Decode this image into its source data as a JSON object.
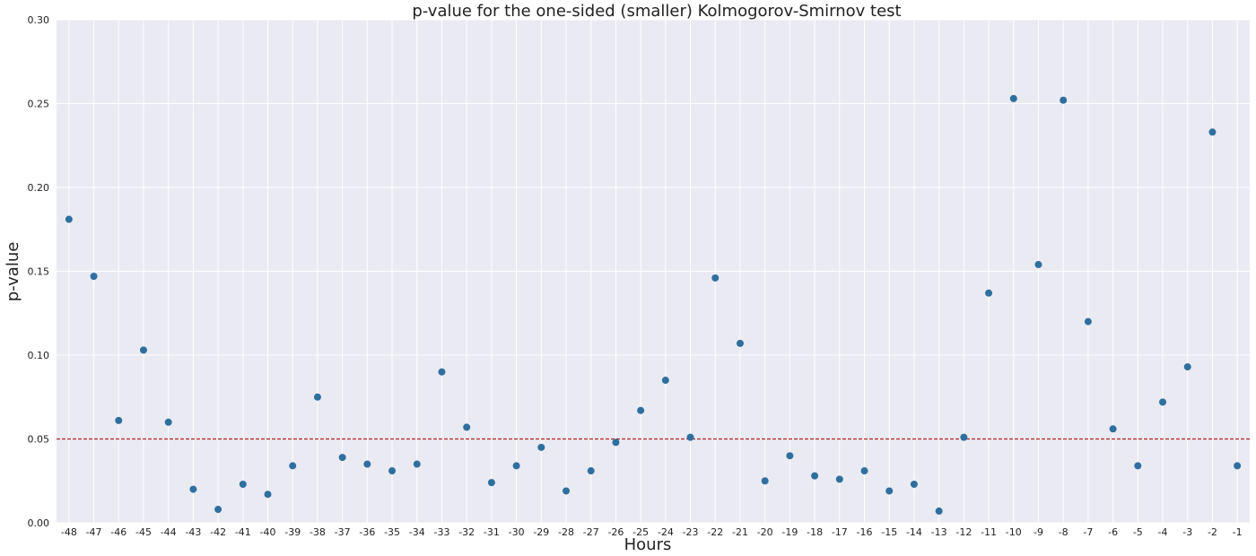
{
  "chart_data": {
    "type": "scatter",
    "title": "p-value for the one-sided (smaller) Kolmogorov-Smirnov test",
    "xlabel": "Hours",
    "ylabel": "p-value",
    "x": [
      -48,
      -47,
      -46,
      -45,
      -44,
      -43,
      -42,
      -41,
      -40,
      -39,
      -38,
      -37,
      -36,
      -35,
      -34,
      -33,
      -32,
      -31,
      -30,
      -29,
      -28,
      -27,
      -26,
      -25,
      -24,
      -23,
      -22,
      -21,
      -20,
      -19,
      -18,
      -17,
      -16,
      -15,
      -14,
      -13,
      -12,
      -11,
      -10,
      -9,
      -8,
      -7,
      -6,
      -5,
      -4,
      -3,
      -2,
      -1
    ],
    "x_tick_labels": [
      "-48",
      "-47",
      "-46",
      "-45",
      "-44",
      "-43",
      "-42",
      "-41",
      "-40",
      "-39",
      "-38",
      "-37",
      "-36",
      "-35",
      "-34",
      "-33",
      "-32",
      "-31",
      "-30",
      "-29",
      "-28",
      "-27",
      "-26",
      "-25",
      "-24",
      "-23",
      "-22",
      "-21",
      "-20",
      "-19",
      "-18",
      "-17",
      "-16",
      "-15",
      "-14",
      "-13",
      "-12",
      "-11",
      "-10",
      "-9",
      "-8",
      "-7",
      "-6",
      "-5",
      "-4",
      "-3",
      "-2",
      "-1"
    ],
    "y": [
      0.181,
      0.147,
      0.061,
      0.103,
      0.06,
      0.02,
      0.008,
      0.023,
      0.017,
      0.034,
      0.075,
      0.039,
      0.035,
      0.031,
      0.035,
      0.09,
      0.057,
      0.024,
      0.034,
      0.045,
      0.019,
      0.031,
      0.048,
      0.067,
      0.085,
      0.051,
      0.146,
      0.107,
      0.025,
      0.04,
      0.028,
      0.026,
      0.031,
      0.019,
      0.023,
      0.007,
      0.051,
      0.137,
      0.253,
      0.154,
      0.252,
      0.12,
      0.056,
      0.034,
      0.072,
      0.093,
      0.233,
      0.034
    ],
    "xlim": [
      -48.5,
      -0.5
    ],
    "ylim": [
      0,
      0.3
    ],
    "y_ticks": [
      0.0,
      0.05,
      0.1,
      0.15,
      0.2,
      0.25,
      0.3
    ],
    "y_tick_labels": [
      "0.00",
      "0.05",
      "0.10",
      "0.15",
      "0.20",
      "0.25",
      "0.30"
    ],
    "reference_line": {
      "y": 0.05,
      "color": "#b22222",
      "style": "dashed"
    },
    "grid": true,
    "colors": {
      "point": "#2e6f9e",
      "background": "#eaeaf2",
      "grid": "#ffffff"
    }
  }
}
